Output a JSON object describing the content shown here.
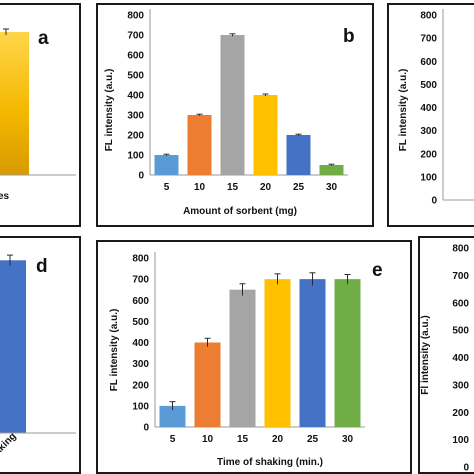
{
  "chart_data": [
    {
      "id": "a",
      "type": "bar",
      "panel_label": "a",
      "visible_tick_labels": [
        "es"
      ],
      "series": [
        {
          "values": [
            715
          ],
          "error": [
            15
          ],
          "color": "#f2b807"
        }
      ],
      "ylim": [
        0,
        800
      ],
      "partial": true
    },
    {
      "id": "b",
      "type": "bar",
      "panel_label": "b",
      "categories": [
        "5",
        "10",
        "15",
        "20",
        "25",
        "30"
      ],
      "values": [
        100,
        300,
        700,
        400,
        200,
        50
      ],
      "error": [
        4,
        4,
        6,
        5,
        4,
        4
      ],
      "colors": [
        "#5b9bd5",
        "#ed7d31",
        "#a5a5a5",
        "#ffc000",
        "#4472c4",
        "#70ad47"
      ],
      "xlabel": "Amount of sorbent (mg)",
      "ylabel": "FL intensity (a.u.)",
      "yticks": [
        "0",
        "100",
        "200",
        "300",
        "400",
        "500",
        "600",
        "700",
        "800"
      ],
      "ylim": [
        0,
        800
      ],
      "grid": false
    },
    {
      "id": "c",
      "type": "bar",
      "ylabel": "FL intensity (a.u.)",
      "yticks": [
        "0",
        "100",
        "200",
        "300",
        "400",
        "500",
        "600",
        "700",
        "800"
      ],
      "ylim": [
        0,
        800
      ],
      "partial": true
    },
    {
      "id": "d",
      "type": "bar",
      "panel_label": "d",
      "visible_tick_labels": [
        "aking"
      ],
      "series": [
        {
          "values": [
            735
          ],
          "error": [
            22
          ],
          "color": "#4472c4"
        }
      ],
      "ylim": [
        0,
        800
      ],
      "partial": true
    },
    {
      "id": "e",
      "type": "bar",
      "panel_label": "e",
      "categories": [
        "5",
        "10",
        "15",
        "20",
        "25",
        "30"
      ],
      "values": [
        100,
        400,
        650,
        700,
        700,
        700
      ],
      "error": [
        20,
        20,
        28,
        25,
        30,
        22
      ],
      "colors": [
        "#5b9bd5",
        "#ed7d31",
        "#a5a5a5",
        "#ffc000",
        "#4472c4",
        "#70ad47"
      ],
      "xlabel": "Time of shaking (min.)",
      "ylabel": "FL intensity (a.u.)",
      "yticks": [
        "0",
        "100",
        "200",
        "300",
        "400",
        "500",
        "600",
        "700",
        "800"
      ],
      "ylim": [
        0,
        800
      ],
      "grid": false
    },
    {
      "id": "f",
      "type": "bar",
      "ylabel": "Fl intensity (a.u.)",
      "yticks": [
        "0",
        "100",
        "200",
        "300",
        "400",
        "500",
        "600",
        "700",
        "800"
      ],
      "ylim": [
        0,
        800
      ],
      "partial": true
    }
  ]
}
